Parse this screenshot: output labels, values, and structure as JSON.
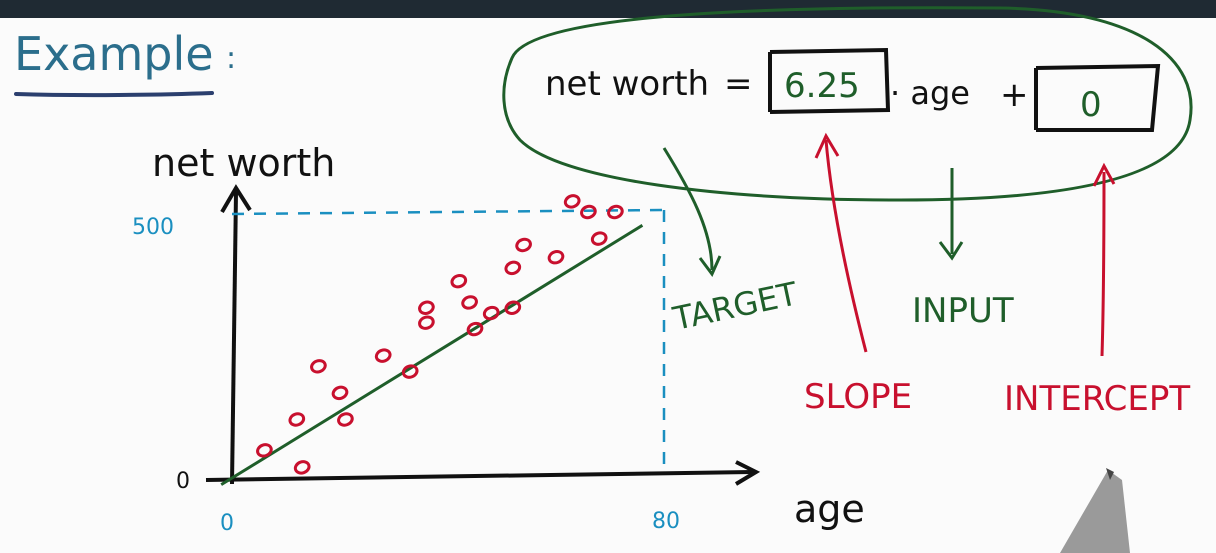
{
  "heading": {
    "text": "Example",
    "colon": ":"
  },
  "equation": {
    "lhs": "net worth",
    "equals": "=",
    "slope_value": "6.25",
    "dot_age": "· age",
    "plus": "+",
    "intercept_value": "0"
  },
  "labels": {
    "target": "TARGET",
    "input": "INPUT",
    "slope": "SLOPE",
    "intercept": "INTERCEPT"
  },
  "axes": {
    "y_label": "net worth",
    "x_label": "age",
    "y_tick_top": "500",
    "y_tick_zero": "0",
    "x_tick_zero": "0",
    "x_tick_end": "80"
  },
  "colors": {
    "ink": "#111111",
    "green": "#1f5e2a",
    "red": "#c8102e",
    "blue": "#1a8fc0",
    "topbar": "#1f2a33",
    "board": "#fbfbfb"
  },
  "chart_data": {
    "type": "scatter",
    "xlabel": "age",
    "ylabel": "net worth",
    "xlim": [
      0,
      80
    ],
    "ylim": [
      0,
      500
    ],
    "x_ticks": [
      0,
      80
    ],
    "y_ticks": [
      0,
      500
    ],
    "points": [
      {
        "x": 6,
        "y": 52
      },
      {
        "x": 13,
        "y": 20
      },
      {
        "x": 12,
        "y": 110
      },
      {
        "x": 16,
        "y": 210
      },
      {
        "x": 20,
        "y": 160
      },
      {
        "x": 21,
        "y": 110
      },
      {
        "x": 28,
        "y": 230
      },
      {
        "x": 33,
        "y": 200
      },
      {
        "x": 36,
        "y": 320
      },
      {
        "x": 36,
        "y": 292
      },
      {
        "x": 42,
        "y": 370
      },
      {
        "x": 44,
        "y": 330
      },
      {
        "x": 45,
        "y": 280
      },
      {
        "x": 48,
        "y": 310
      },
      {
        "x": 52,
        "y": 320
      },
      {
        "x": 52,
        "y": 395
      },
      {
        "x": 54,
        "y": 438
      },
      {
        "x": 60,
        "y": 415
      },
      {
        "x": 63,
        "y": 520
      },
      {
        "x": 66,
        "y": 500
      },
      {
        "x": 68,
        "y": 450
      },
      {
        "x": 71,
        "y": 500
      }
    ],
    "fit_line": {
      "slope": 6.25,
      "intercept": 0,
      "x_range": [
        -2,
        76
      ]
    }
  }
}
